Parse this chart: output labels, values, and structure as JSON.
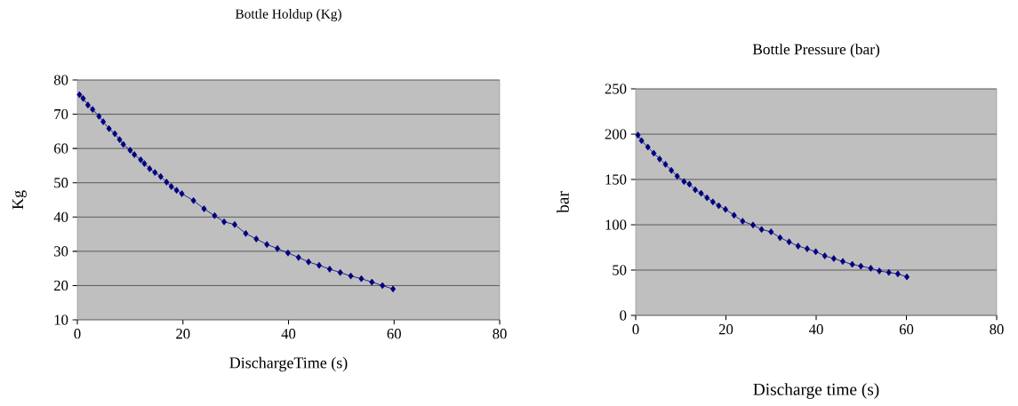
{
  "chart_data": [
    {
      "type": "line",
      "title": "Bottle Holdup  (Kg)",
      "xlabel": "DischargeTime (s)",
      "ylabel": "Kg",
      "marker": "diamond",
      "grid": "y",
      "color": "#000080",
      "xlim": [
        0,
        80
      ],
      "ylim": [
        10,
        80
      ],
      "xticks": [
        0,
        20,
        40,
        60,
        80
      ],
      "yticks": [
        10,
        20,
        30,
        40,
        50,
        60,
        70,
        80
      ],
      "x": [
        0.4,
        1.1,
        2,
        2.9,
        4.1,
        4.9,
        6,
        7.1,
        8,
        8.7,
        10,
        10.8,
        12,
        12.7,
        13.7,
        14.7,
        15.8,
        16.9,
        17.8,
        18.8,
        19.8,
        22,
        24,
        26,
        27.8,
        29.8,
        31.9,
        33.9,
        35.9,
        37.9,
        39.9,
        41.9,
        43.8,
        45.8,
        47.8,
        49.8,
        51.8,
        53.8,
        55.8,
        57.8,
        59.8
      ],
      "values": [
        75.7,
        74.6,
        72.7,
        71.4,
        69.4,
        67.8,
        65.8,
        64.3,
        62.6,
        61.2,
        59.5,
        58.2,
        56.7,
        55.6,
        54.1,
        53,
        51.8,
        50.2,
        48.9,
        47.8,
        46.8,
        44.8,
        42.4,
        40.4,
        38.6,
        37.8,
        35.2,
        33.6,
        32,
        30.8,
        29.5,
        28.2,
        26.9,
        25.9,
        24.8,
        23.8,
        22.8,
        22,
        21,
        20,
        19
      ]
    },
    {
      "type": "line",
      "title": "Bottle Pressure (bar)",
      "xlabel": "Discharge time (s)",
      "ylabel": "bar",
      "marker": "diamond",
      "grid": "y",
      "color": "#000080",
      "xlim": [
        0,
        80
      ],
      "ylim": [
        0,
        250
      ],
      "xticks": [
        0,
        20,
        40,
        60,
        80
      ],
      "yticks": [
        0,
        50,
        100,
        150,
        200,
        250
      ],
      "x": [
        0.5,
        1.3,
        2.7,
        4,
        5.3,
        6.6,
        7.9,
        9.2,
        10.7,
        11.9,
        13.2,
        14.5,
        15.8,
        17.1,
        18.4,
        19.9,
        21.8,
        23.7,
        26,
        27.9,
        30,
        32,
        34,
        36,
        38,
        39.9,
        41.9,
        43.9,
        45.9,
        48,
        49.9,
        52.1,
        54,
        56.1,
        58.1,
        60.1
      ],
      "values": [
        199,
        192.8,
        185.7,
        179,
        172.6,
        166.7,
        160,
        153.6,
        147.7,
        144.8,
        138.6,
        134.7,
        129.8,
        125.2,
        121,
        117,
        110.5,
        103.9,
        99.7,
        94.8,
        92.2,
        85.7,
        81.1,
        76.5,
        73.5,
        70.3,
        65.7,
        62.7,
        59.5,
        56.3,
        54.3,
        52,
        49,
        47.4,
        45.8,
        42.5
      ]
    }
  ]
}
